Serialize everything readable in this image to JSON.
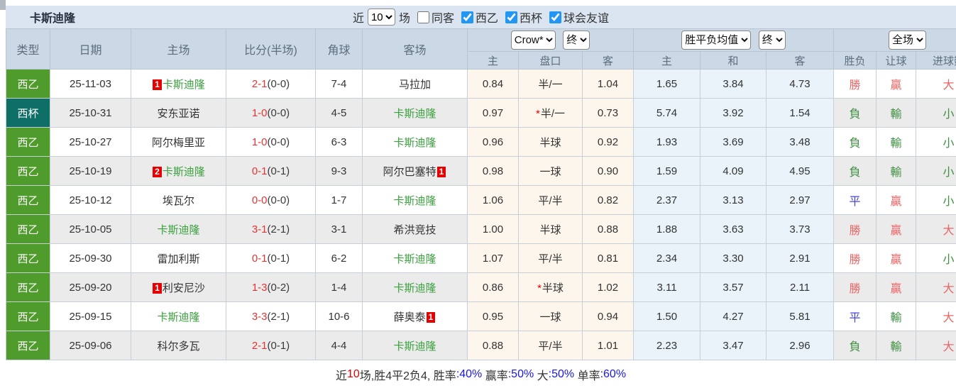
{
  "title": "卡斯迪隆",
  "filters": {
    "recent_label": "近",
    "recent_value": "10",
    "games_label": "场",
    "checkboxes": [
      {
        "label": "同客",
        "checked": false
      },
      {
        "label": "西乙",
        "checked": true
      },
      {
        "label": "西杯",
        "checked": true
      },
      {
        "label": "球会友谊",
        "checked": true
      }
    ]
  },
  "colors": {
    "league": "#4f9b2b",
    "cup": "#0e6f66",
    "self_team": "#3aa13d",
    "win_red": "#ec6666",
    "lose_green": "#3f8f43",
    "draw_blue": "#4444d8",
    "score_red": "#e73333",
    "rank_badge": "#e60000",
    "checkbox_accent": "#2196f3",
    "percent_blue": "#1717e8",
    "header_bg": "#cbd8e5",
    "titlebar_bg": "#dbe5f1"
  },
  "table": {
    "static_headers": [
      "类型",
      "日期",
      "主场",
      "比分(半场)",
      "角球",
      "客场"
    ],
    "groups": {
      "odds": {
        "selects": [
          "Crow*",
          "终"
        ],
        "sub": [
          "主",
          "盘口",
          "客"
        ]
      },
      "avg": {
        "selects": [
          "胜平负均值",
          "终"
        ],
        "sub": [
          "主",
          "和",
          "客"
        ]
      },
      "result": {
        "selects": [
          "全场"
        ],
        "sub": [
          "胜负",
          "让球",
          "进球数"
        ]
      }
    },
    "rows": [
      {
        "type": "西乙",
        "type_key": "league",
        "date": "25-11-03",
        "home": {
          "name": "卡斯迪隆",
          "self": true,
          "rank": "1"
        },
        "score": "2-1",
        "half": "(0-0)",
        "corners": "7-4",
        "away": {
          "name": "马拉加",
          "self": false
        },
        "odds": {
          "home": "0.84",
          "handicap": "半/一",
          "star": false,
          "away": "1.04"
        },
        "avg": {
          "home": "1.65",
          "draw": "3.84",
          "away": "4.73"
        },
        "results": [
          {
            "text": "勝",
            "c": "r"
          },
          {
            "text": "贏",
            "c": "r"
          },
          {
            "text": "大",
            "c": "r"
          }
        ]
      },
      {
        "type": "西杯",
        "type_key": "cup",
        "date": "25-10-31",
        "home": {
          "name": "安东亚诺",
          "self": false
        },
        "score": "1-0",
        "half": "(0-0)",
        "corners": "4-5",
        "away": {
          "name": "卡斯迪隆",
          "self": true
        },
        "odds": {
          "home": "0.97",
          "handicap": "半/一",
          "star": true,
          "away": "0.73"
        },
        "avg": {
          "home": "5.74",
          "draw": "3.92",
          "away": "1.54"
        },
        "results": [
          {
            "text": "負",
            "c": "g"
          },
          {
            "text": "輸",
            "c": "g"
          },
          {
            "text": "小",
            "c": "g"
          }
        ]
      },
      {
        "type": "西乙",
        "type_key": "league",
        "date": "25-10-27",
        "home": {
          "name": "阿尔梅里亚",
          "self": false
        },
        "score": "1-0",
        "half": "(0-0)",
        "corners": "6-3",
        "away": {
          "name": "卡斯迪隆",
          "self": true
        },
        "odds": {
          "home": "0.96",
          "handicap": "半球",
          "star": false,
          "away": "0.92"
        },
        "avg": {
          "home": "1.93",
          "draw": "3.69",
          "away": "3.48"
        },
        "results": [
          {
            "text": "負",
            "c": "g"
          },
          {
            "text": "輸",
            "c": "g"
          },
          {
            "text": "小",
            "c": "g"
          }
        ]
      },
      {
        "type": "西乙",
        "type_key": "league",
        "date": "25-10-19",
        "home": {
          "name": "卡斯迪隆",
          "self": true,
          "rank": "2"
        },
        "score": "0-1",
        "half": "(0-1)",
        "corners": "9-3",
        "away": {
          "name": "阿尔巴塞特",
          "self": false,
          "rank": "1"
        },
        "odds": {
          "home": "0.98",
          "handicap": "一球",
          "star": false,
          "away": "0.90"
        },
        "avg": {
          "home": "1.59",
          "draw": "4.09",
          "away": "4.95"
        },
        "results": [
          {
            "text": "負",
            "c": "g"
          },
          {
            "text": "輸",
            "c": "g"
          },
          {
            "text": "小",
            "c": "g"
          }
        ]
      },
      {
        "type": "西乙",
        "type_key": "league",
        "date": "25-10-12",
        "home": {
          "name": "埃瓦尔",
          "self": false
        },
        "score": "0-0",
        "half": "(0-0)",
        "corners": "1-7",
        "away": {
          "name": "卡斯迪隆",
          "self": true
        },
        "odds": {
          "home": "1.06",
          "handicap": "平/半",
          "star": false,
          "away": "0.82"
        },
        "avg": {
          "home": "2.37",
          "draw": "3.13",
          "away": "2.97"
        },
        "results": [
          {
            "text": "平",
            "c": "b"
          },
          {
            "text": "贏",
            "c": "r"
          },
          {
            "text": "小",
            "c": "g"
          }
        ]
      },
      {
        "type": "西乙",
        "type_key": "league",
        "date": "25-10-05",
        "home": {
          "name": "卡斯迪隆",
          "self": true
        },
        "score": "3-1",
        "half": "(2-1)",
        "corners": "3-1",
        "away": {
          "name": "希洪竞技",
          "self": false
        },
        "odds": {
          "home": "1.00",
          "handicap": "半球",
          "star": false,
          "away": "0.88"
        },
        "avg": {
          "home": "1.88",
          "draw": "3.63",
          "away": "3.73"
        },
        "results": [
          {
            "text": "勝",
            "c": "r"
          },
          {
            "text": "贏",
            "c": "r"
          },
          {
            "text": "大",
            "c": "r"
          }
        ]
      },
      {
        "type": "西乙",
        "type_key": "league",
        "date": "25-09-30",
        "home": {
          "name": "雷加利斯",
          "self": false
        },
        "score": "0-1",
        "half": "(0-1)",
        "corners": "6-2",
        "away": {
          "name": "卡斯迪隆",
          "self": true
        },
        "odds": {
          "home": "1.07",
          "handicap": "平/半",
          "star": false,
          "away": "0.81"
        },
        "avg": {
          "home": "2.34",
          "draw": "3.30",
          "away": "2.91"
        },
        "results": [
          {
            "text": "勝",
            "c": "r"
          },
          {
            "text": "贏",
            "c": "r"
          },
          {
            "text": "小",
            "c": "g"
          }
        ]
      },
      {
        "type": "西乙",
        "type_key": "league",
        "date": "25-09-20",
        "home": {
          "name": "利安尼沙",
          "self": false,
          "rank": "1"
        },
        "score": "1-3",
        "half": "(0-2)",
        "corners": "1-4",
        "away": {
          "name": "卡斯迪隆",
          "self": true
        },
        "odds": {
          "home": "0.86",
          "handicap": "半球",
          "star": true,
          "away": "1.02"
        },
        "avg": {
          "home": "3.11",
          "draw": "3.57",
          "away": "2.11"
        },
        "results": [
          {
            "text": "勝",
            "c": "r"
          },
          {
            "text": "贏",
            "c": "r"
          },
          {
            "text": "大",
            "c": "r"
          }
        ]
      },
      {
        "type": "西乙",
        "type_key": "league",
        "date": "25-09-15",
        "home": {
          "name": "卡斯迪隆",
          "self": true
        },
        "score": "3-3",
        "half": "(2-1)",
        "corners": "10-6",
        "away": {
          "name": "薛奥泰",
          "self": false,
          "rank": "1"
        },
        "odds": {
          "home": "0.95",
          "handicap": "一球",
          "star": false,
          "away": "0.94"
        },
        "avg": {
          "home": "1.50",
          "draw": "4.27",
          "away": "5.81"
        },
        "results": [
          {
            "text": "平",
            "c": "b"
          },
          {
            "text": "輸",
            "c": "g"
          },
          {
            "text": "大",
            "c": "r"
          }
        ]
      },
      {
        "type": "西乙",
        "type_key": "league",
        "date": "25-09-06",
        "home": {
          "name": "科尔多瓦",
          "self": false
        },
        "score": "2-1",
        "half": "(0-1)",
        "corners": "4-4",
        "away": {
          "name": "卡斯迪隆",
          "self": true
        },
        "odds": {
          "home": "0.88",
          "handicap": "平/半",
          "star": false,
          "away": "1.01"
        },
        "avg": {
          "home": "2.23",
          "draw": "3.47",
          "away": "2.96"
        },
        "results": [
          {
            "text": "負",
            "c": "g"
          },
          {
            "text": "輸",
            "c": "g"
          },
          {
            "text": "大",
            "c": "r"
          }
        ]
      }
    ]
  },
  "footer": {
    "segments": [
      {
        "text": "近",
        "c": "dark"
      },
      {
        "text": "10",
        "c": "red"
      },
      {
        "text": "场,胜4平2负4, 胜率",
        "c": "dark"
      },
      {
        "text": ":40%",
        "c": "blue"
      },
      {
        "text": " 赢率",
        "c": "dark"
      },
      {
        "text": ":50%",
        "c": "blue"
      },
      {
        "text": " 大",
        "c": "dark"
      },
      {
        "text": ":50%",
        "c": "blue"
      },
      {
        "text": " 单率",
        "c": "dark"
      },
      {
        "text": ":60%",
        "c": "blue"
      }
    ]
  }
}
